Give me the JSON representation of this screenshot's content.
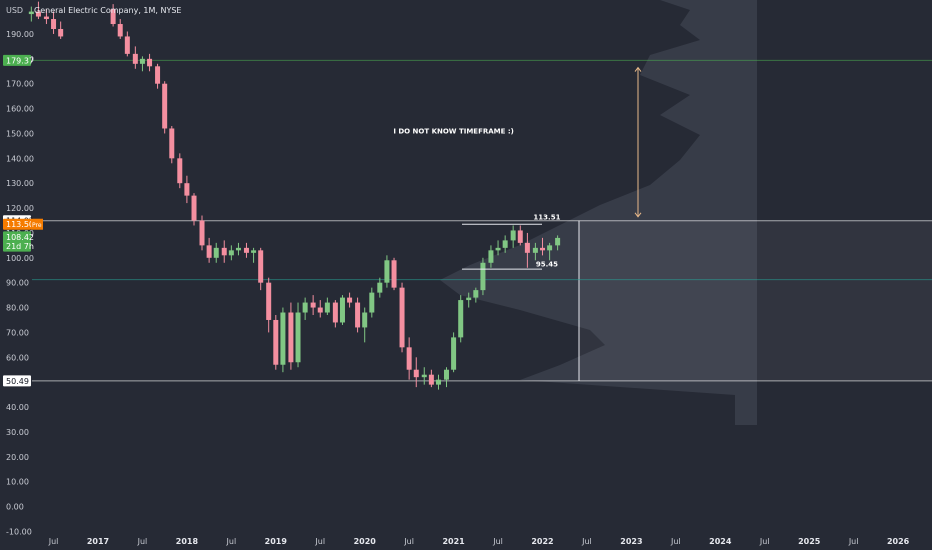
{
  "header": {
    "title": "General Electric Company, 1M, NYSE",
    "currency": "USD"
  },
  "chart_data": {
    "type": "candlestick",
    "timeframe": "1M",
    "ylim": [
      -10,
      200
    ],
    "y_ticks": [
      -10,
      0,
      10,
      20,
      30,
      40,
      50,
      60,
      70,
      80,
      90,
      100,
      110,
      120,
      130,
      140,
      150,
      160,
      170,
      180,
      190
    ],
    "y_tick_labels": [
      "-10.00",
      "0.00",
      "10.00",
      "20.00",
      "30.00",
      "40.00",
      "50.00",
      "60.00",
      "70.00",
      "80.00",
      "90.00",
      "100.00",
      "110.00",
      "120.00",
      "130.00",
      "140.00",
      "150.00",
      "160.00",
      "170.00",
      "180.00",
      "190.00"
    ],
    "x_ticks": [
      "Jul",
      "2017",
      "Jul",
      "2018",
      "Jul",
      "2019",
      "Jul",
      "2020",
      "Jul",
      "2021",
      "Jul",
      "2022",
      "Jul",
      "2023",
      "Jul",
      "2024",
      "Jul",
      "2025",
      "Jul",
      "2026"
    ],
    "x_tick_years": [
      2016.5,
      2017,
      2017.5,
      2018,
      2018.5,
      2019,
      2019.5,
      2020,
      2020.5,
      2021,
      2021.5,
      2022,
      2022.5,
      2023,
      2023.5,
      2024,
      2024.5,
      2025,
      2025.5,
      2026
    ],
    "candles": [
      [
        2016.25,
        198,
        201,
        195,
        199
      ],
      [
        2016.33,
        199,
        203,
        196,
        197
      ],
      [
        2016.42,
        197,
        200,
        194,
        196
      ],
      [
        2016.5,
        196,
        199,
        190,
        192
      ],
      [
        2016.58,
        192,
        195,
        188,
        189
      ],
      [
        2017.17,
        200,
        202,
        193,
        194
      ],
      [
        2017.25,
        194,
        196,
        188,
        189
      ],
      [
        2017.33,
        189,
        191,
        181,
        182
      ],
      [
        2017.42,
        182,
        185,
        176,
        178
      ],
      [
        2017.5,
        178,
        181,
        175,
        180
      ],
      [
        2017.58,
        180,
        182,
        175,
        177
      ],
      [
        2017.67,
        177,
        178,
        168,
        170
      ],
      [
        2017.75,
        170,
        171,
        150,
        152
      ],
      [
        2017.83,
        152,
        153,
        138,
        140
      ],
      [
        2017.92,
        140,
        142,
        128,
        130
      ],
      [
        2018.0,
        130,
        133,
        122,
        125
      ],
      [
        2018.08,
        125,
        126,
        113,
        115
      ],
      [
        2018.17,
        115,
        117,
        103,
        105
      ],
      [
        2018.25,
        105,
        108,
        98,
        100
      ],
      [
        2018.33,
        100,
        106,
        98,
        104
      ],
      [
        2018.42,
        104,
        107,
        98,
        101
      ],
      [
        2018.5,
        101,
        105,
        99,
        103
      ],
      [
        2018.58,
        103,
        106,
        101,
        104
      ],
      [
        2018.67,
        104,
        106,
        100,
        102
      ],
      [
        2018.75,
        102,
        104,
        98,
        103
      ],
      [
        2018.83,
        103,
        104,
        87,
        90
      ],
      [
        2018.92,
        90,
        92,
        70,
        75
      ],
      [
        2019.0,
        75,
        77,
        55,
        57
      ],
      [
        2019.08,
        57,
        80,
        54,
        78
      ],
      [
        2019.17,
        78,
        82,
        55,
        58
      ],
      [
        2019.25,
        58,
        82,
        56,
        78
      ],
      [
        2019.33,
        78,
        84,
        75,
        82
      ],
      [
        2019.42,
        82,
        85,
        77,
        80
      ],
      [
        2019.5,
        80,
        83,
        76,
        78
      ],
      [
        2019.58,
        78,
        84,
        77,
        82
      ],
      [
        2019.67,
        82,
        83,
        72,
        74
      ],
      [
        2019.75,
        74,
        85,
        73,
        84
      ],
      [
        2019.83,
        84,
        86,
        80,
        82
      ],
      [
        2019.92,
        82,
        84,
        70,
        72
      ],
      [
        2020.0,
        72,
        80,
        66,
        78
      ],
      [
        2020.08,
        78,
        88,
        76,
        86
      ],
      [
        2020.17,
        86,
        92,
        84,
        90
      ],
      [
        2020.25,
        90,
        101,
        88,
        99
      ],
      [
        2020.33,
        99,
        100,
        87,
        88
      ],
      [
        2020.42,
        88,
        90,
        62,
        64
      ],
      [
        2020.5,
        64,
        68,
        51,
        55
      ],
      [
        2020.58,
        55,
        60,
        48,
        52
      ],
      [
        2020.67,
        52,
        56,
        49,
        53
      ],
      [
        2020.75,
        53,
        55,
        48,
        49
      ],
      [
        2020.83,
        49,
        53,
        47,
        51
      ],
      [
        2020.92,
        51,
        56,
        48,
        55
      ],
      [
        2021.0,
        55,
        70,
        54,
        68
      ],
      [
        2021.08,
        68,
        85,
        66,
        83
      ],
      [
        2021.17,
        83,
        86,
        80,
        84
      ],
      [
        2021.25,
        84,
        88,
        82,
        87
      ],
      [
        2021.33,
        87,
        100,
        85,
        98
      ],
      [
        2021.42,
        98,
        105,
        96,
        103
      ],
      [
        2021.5,
        103,
        107,
        101,
        104
      ],
      [
        2021.58,
        104,
        109,
        102,
        107
      ],
      [
        2021.67,
        107,
        113,
        104,
        111
      ],
      [
        2021.75,
        111,
        113,
        105,
        106
      ],
      [
        2021.83,
        106,
        110,
        96,
        102
      ],
      [
        2021.92,
        102,
        106,
        99,
        104
      ],
      [
        2022.0,
        104,
        108,
        101,
        103
      ],
      [
        2022.08,
        103,
        106,
        99,
        105
      ],
      [
        2022.17,
        105,
        109,
        103,
        108
      ]
    ],
    "horizontal_levels": [
      {
        "value": 179.37,
        "label": "179.37",
        "color": "#4caf50"
      },
      {
        "value": 114.92,
        "label": "114.92",
        "color": "#ffffff"
      },
      {
        "value": 91.2,
        "label": "",
        "color": "#26a69a"
      },
      {
        "value": 50.49,
        "label": "50.49",
        "color": "#ffffff"
      }
    ],
    "price_tags": [
      {
        "value": 113.5,
        "label": "113.50",
        "suffix": "Pre",
        "color": "#f57c00"
      },
      {
        "value": 108.42,
        "label": "108.42",
        "color": "#4caf50"
      },
      {
        "value": 104.7,
        "label": "21d 7h",
        "color": "#4caf50"
      }
    ],
    "annotations": [
      {
        "text": "I DO NOT KNOW TIMEFRAME :)",
        "x": 2021.0,
        "y": 150.0
      },
      {
        "text": "113.51",
        "x": 2022.05,
        "y": 115.5
      },
      {
        "text": "95.45",
        "x": 2022.05,
        "y": 96.5
      }
    ],
    "colors": {
      "up": "#81c784",
      "down": "#f48fa0",
      "background": "#262a35",
      "volume_profile": "#3a3e4a"
    }
  }
}
